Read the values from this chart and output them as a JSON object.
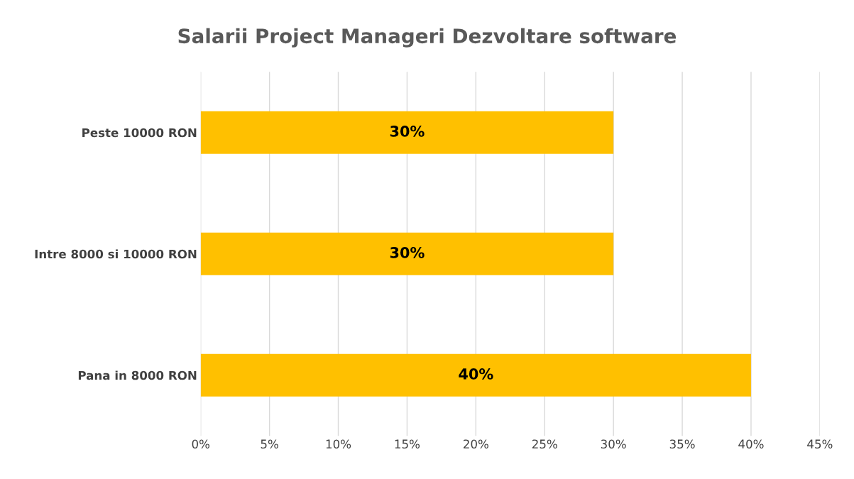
{
  "chart_data": {
    "type": "bar",
    "orientation": "horizontal",
    "title": "Salarii Project Manageri Dezvoltare software",
    "categories": [
      "Peste 10000 RON",
      "Intre 8000 si 10000 RON",
      "Pana in 8000 RON"
    ],
    "values": [
      30,
      30,
      40
    ],
    "color": "#ffc000",
    "value_labels": [
      "30%",
      "30%",
      "40%"
    ],
    "xlim": [
      0,
      45
    ],
    "xticks": [
      {
        "value": 0,
        "label": "0%"
      },
      {
        "value": 5,
        "label": "5%"
      },
      {
        "value": 10,
        "label": "10%"
      },
      {
        "value": 15,
        "label": "15%"
      },
      {
        "value": 20,
        "label": "20%"
      },
      {
        "value": 25,
        "label": "25%"
      },
      {
        "value": 30,
        "label": "30%"
      },
      {
        "value": 35,
        "label": "35%"
      },
      {
        "value": 40,
        "label": "40%"
      },
      {
        "value": 45,
        "label": "45%"
      }
    ],
    "grid": "x",
    "legend": false
  }
}
